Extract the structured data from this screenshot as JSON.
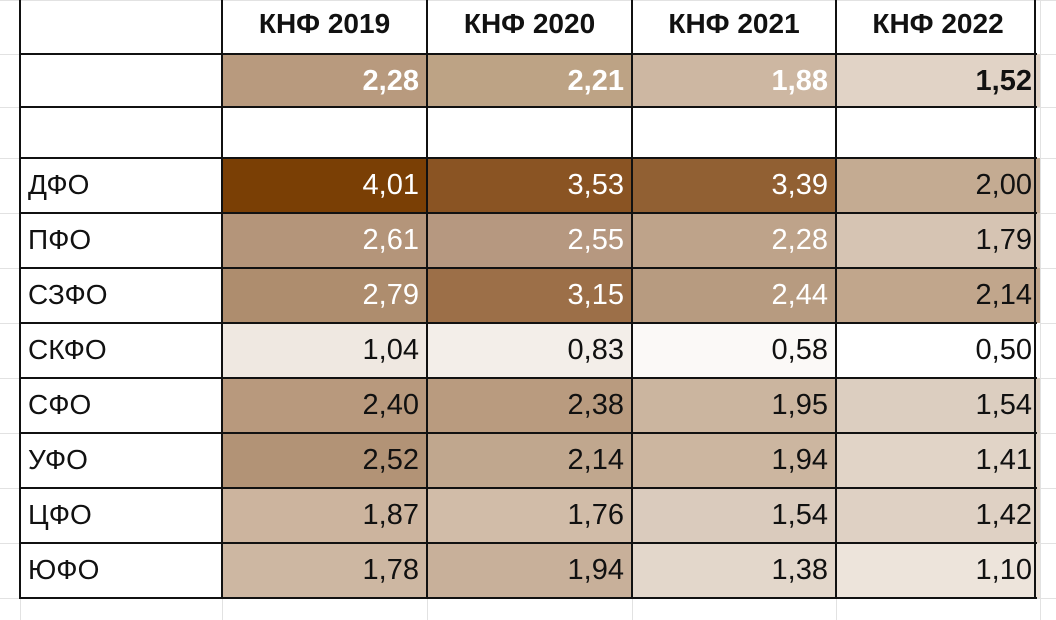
{
  "columns": [
    "",
    "КНФ 2019",
    "КНФ 2020",
    "КНФ 2021",
    "КНФ 2022"
  ],
  "summary": {
    "values": [
      "2,28",
      "2,21",
      "1,88",
      "1,52"
    ],
    "bg": [
      "#b89a7e",
      "#bda385",
      "#cdb7a2",
      "#e1d3c6"
    ],
    "fg": [
      "#ffffff",
      "#ffffff",
      "#ffffff",
      "#111111"
    ]
  },
  "rows": [
    {
      "label": "ДФО",
      "values": [
        "4,01",
        "3,53",
        "3,39",
        "2,00"
      ],
      "bg": [
        "#7a3f05",
        "#8a5423",
        "#916033",
        "#c4ab92"
      ],
      "fg": [
        "#ffffff",
        "#ffffff",
        "#ffffff",
        "#111111"
      ]
    },
    {
      "label": "ПФО",
      "values": [
        "2,61",
        "2,55",
        "2,28",
        "1,79"
      ],
      "bg": [
        "#b4957a",
        "#b69880",
        "#bea38a",
        "#d6c4b3"
      ],
      "fg": [
        "#ffffff",
        "#ffffff",
        "#ffffff",
        "#111111"
      ]
    },
    {
      "label": "СЗФО",
      "values": [
        "2,79",
        "3,15",
        "2,44",
        "2,14"
      ],
      "bg": [
        "#ae8d6e",
        "#9c6f48",
        "#b79b80",
        "#c1a68c"
      ],
      "fg": [
        "#ffffff",
        "#ffffff",
        "#ffffff",
        "#111111"
      ]
    },
    {
      "label": "СКФО",
      "values": [
        "1,04",
        "0,83",
        "0,58",
        "0,50"
      ],
      "bg": [
        "#efe8e1",
        "#f3eee9",
        "#fbf9f7",
        "#ffffff"
      ],
      "fg": [
        "#111111",
        "#111111",
        "#111111",
        "#111111"
      ]
    },
    {
      "label": "СФО",
      "values": [
        "2,40",
        "2,38",
        "1,95",
        "1,54"
      ],
      "bg": [
        "#b8997d",
        "#b99b7f",
        "#cbb59f",
        "#dccec0"
      ],
      "fg": [
        "#111111",
        "#111111",
        "#111111",
        "#111111"
      ]
    },
    {
      "label": "УФО",
      "values": [
        "2,52",
        "2,14",
        "1,94",
        "1,41"
      ],
      "bg": [
        "#b29376",
        "#c0a78e",
        "#ccb6a0",
        "#e1d4c7"
      ],
      "fg": [
        "#111111",
        "#111111",
        "#111111",
        "#111111"
      ]
    },
    {
      "label": "ЦФО",
      "values": [
        "1,87",
        "1,76",
        "1,54",
        "1,42"
      ],
      "bg": [
        "#ccb49e",
        "#d1bca8",
        "#dacbbd",
        "#dfd1c4"
      ],
      "fg": [
        "#111111",
        "#111111",
        "#111111",
        "#111111"
      ]
    },
    {
      "label": "ЮФО",
      "values": [
        "1,78",
        "1,94",
        "1,38",
        "1,10"
      ],
      "bg": [
        "#cdb7a2",
        "#c8b09a",
        "#e3d7cb",
        "#ede4db"
      ],
      "fg": [
        "#111111",
        "#111111",
        "#111111",
        "#111111"
      ]
    }
  ]
}
